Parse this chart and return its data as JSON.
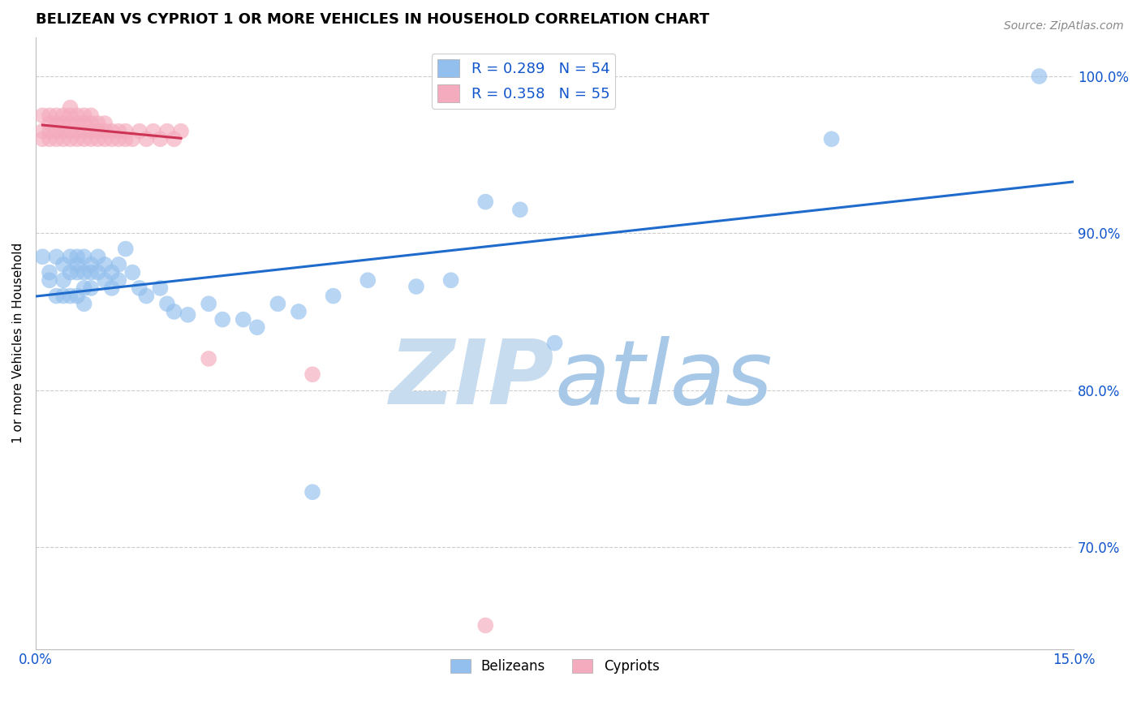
{
  "title": "BELIZEAN VS CYPRIOT 1 OR MORE VEHICLES IN HOUSEHOLD CORRELATION CHART",
  "source_text": "Source: ZipAtlas.com",
  "xlabel": "",
  "ylabel": "1 or more Vehicles in Household",
  "xlim": [
    0.0,
    0.15
  ],
  "ylim": [
    0.635,
    1.025
  ],
  "xticks": [
    0.0,
    0.03,
    0.06,
    0.09,
    0.12,
    0.15
  ],
  "xtick_labels": [
    "0.0%",
    "",
    "",
    "",
    "",
    "15.0%"
  ],
  "ytick_labels": [
    "70.0%",
    "80.0%",
    "90.0%",
    "100.0%"
  ],
  "yticks": [
    0.7,
    0.8,
    0.9,
    1.0
  ],
  "blue_R": 0.289,
  "blue_N": 54,
  "pink_R": 0.358,
  "pink_N": 55,
  "blue_color": "#92BFED",
  "pink_color": "#F4ABBD",
  "blue_line_color": "#1F6BCC",
  "pink_line_color": "#CC3355",
  "title_fontsize": 13,
  "legend_R_color": "#1155CC",
  "watermark_color": "#DDEEFF",
  "blue_x": [
    0.001,
    0.002,
    0.002,
    0.003,
    0.003,
    0.004,
    0.004,
    0.004,
    0.005,
    0.005,
    0.005,
    0.006,
    0.006,
    0.006,
    0.006,
    0.007,
    0.007,
    0.007,
    0.007,
    0.008,
    0.008,
    0.008,
    0.009,
    0.009,
    0.01,
    0.01,
    0.011,
    0.011,
    0.012,
    0.012,
    0.013,
    0.014,
    0.015,
    0.016,
    0.018,
    0.019,
    0.02,
    0.022,
    0.025,
    0.027,
    0.03,
    0.032,
    0.035,
    0.038,
    0.04,
    0.043,
    0.048,
    0.055,
    0.06,
    0.065,
    0.07,
    0.075,
    0.115,
    0.145
  ],
  "blue_y": [
    0.885,
    0.875,
    0.87,
    0.86,
    0.885,
    0.88,
    0.87,
    0.86,
    0.885,
    0.875,
    0.86,
    0.885,
    0.88,
    0.875,
    0.86,
    0.885,
    0.875,
    0.865,
    0.855,
    0.88,
    0.875,
    0.865,
    0.885,
    0.875,
    0.88,
    0.87,
    0.875,
    0.865,
    0.88,
    0.87,
    0.89,
    0.875,
    0.865,
    0.86,
    0.865,
    0.855,
    0.85,
    0.848,
    0.855,
    0.845,
    0.845,
    0.84,
    0.855,
    0.85,
    0.735,
    0.86,
    0.87,
    0.866,
    0.87,
    0.92,
    0.915,
    0.83,
    0.96,
    1.0
  ],
  "pink_x": [
    0.001,
    0.001,
    0.001,
    0.002,
    0.002,
    0.002,
    0.002,
    0.003,
    0.003,
    0.003,
    0.003,
    0.004,
    0.004,
    0.004,
    0.004,
    0.005,
    0.005,
    0.005,
    0.005,
    0.005,
    0.006,
    0.006,
    0.006,
    0.006,
    0.007,
    0.007,
    0.007,
    0.007,
    0.008,
    0.008,
    0.008,
    0.008,
    0.009,
    0.009,
    0.009,
    0.01,
    0.01,
    0.01,
    0.011,
    0.011,
    0.012,
    0.012,
    0.013,
    0.013,
    0.014,
    0.015,
    0.016,
    0.017,
    0.018,
    0.019,
    0.02,
    0.021,
    0.025,
    0.04,
    0.065
  ],
  "pink_y": [
    0.96,
    0.965,
    0.975,
    0.96,
    0.965,
    0.975,
    0.97,
    0.96,
    0.965,
    0.975,
    0.97,
    0.96,
    0.965,
    0.975,
    0.97,
    0.96,
    0.965,
    0.975,
    0.97,
    0.98,
    0.96,
    0.965,
    0.975,
    0.97,
    0.96,
    0.965,
    0.975,
    0.97,
    0.96,
    0.965,
    0.975,
    0.97,
    0.96,
    0.965,
    0.97,
    0.96,
    0.965,
    0.97,
    0.96,
    0.965,
    0.96,
    0.965,
    0.96,
    0.965,
    0.96,
    0.965,
    0.96,
    0.965,
    0.96,
    0.965,
    0.96,
    0.965,
    0.82,
    0.81,
    0.65
  ],
  "pink_trendline_xlim": [
    0.001,
    0.021
  ],
  "blue_trendline_xlim": [
    0.0,
    0.15
  ]
}
